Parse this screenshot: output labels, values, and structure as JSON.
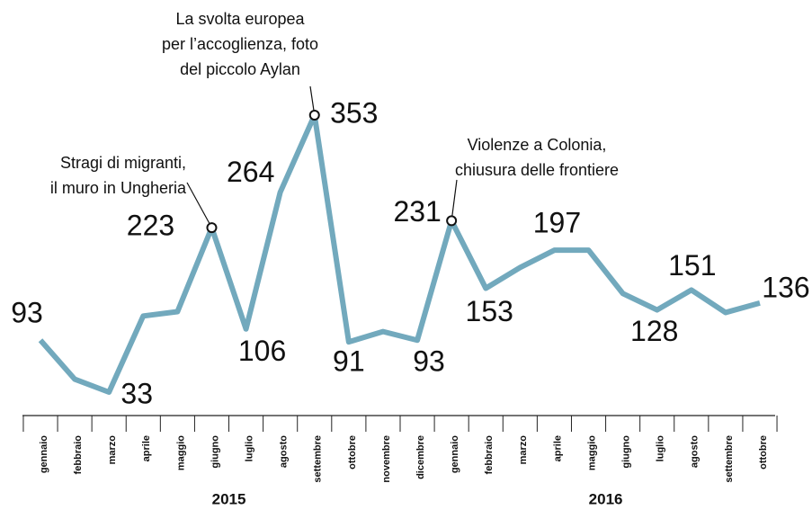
{
  "chart_data": {
    "type": "line",
    "categories": [
      "gennaio",
      "febbraio",
      "marzo",
      "aprile",
      "maggio",
      "giugno",
      "luglio",
      "agosto",
      "settembre",
      "ottobre",
      "novembre",
      "dicembre",
      "gennaio",
      "febbraio",
      "marzo",
      "aprile",
      "maggio",
      "giugno",
      "luglio",
      "agosto",
      "settembre",
      "ottobre"
    ],
    "years": [
      "2015",
      "2016"
    ],
    "series": [
      {
        "color": "#72a9bd",
        "values": [
          93,
          48,
          33,
          121,
          126,
          223,
          106,
          264,
          353,
          91,
          103,
          93,
          231,
          153,
          177,
          197,
          197,
          147,
          128,
          151,
          125,
          136
        ],
        "value_labels": [
          "93",
          null,
          "33",
          null,
          null,
          "223",
          "106",
          "264",
          "353",
          "91",
          null,
          "93",
          "231",
          "153",
          null,
          "197",
          null,
          null,
          "128",
          "151",
          null,
          "136"
        ]
      }
    ],
    "annotations": [
      {
        "lines": [
          "Stragi di migranti,",
          "il muro in Ungheria"
        ]
      },
      {
        "lines": [
          "La svolta europea",
          "per l’accoglienza, foto",
          "del piccolo Aylan"
        ]
      },
      {
        "lines": [
          "Violenze a Colonia,",
          "chiusura delle frontiere"
        ]
      }
    ]
  }
}
